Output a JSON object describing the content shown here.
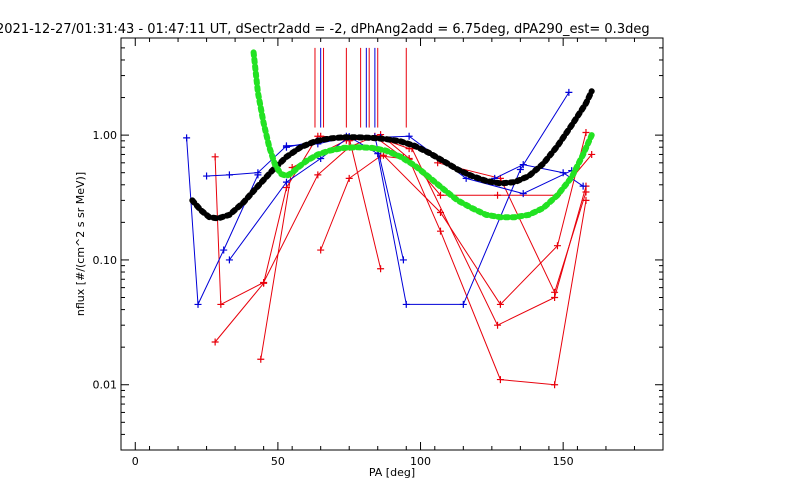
{
  "chart_data": {
    "type": "line",
    "title": "2021-12-27/01:31:43 - 01:47:11 UT, dSectr2add = -2, dPhAng2add = 6.75deg, dPA290_est=   0.3deg",
    "xlabel": "PA [deg]",
    "ylabel": "nflux [#/(cm^2 s sr MeV)]",
    "xlim": [
      -5,
      185
    ],
    "ylim": [
      0.003,
      6
    ],
    "y_scale": "log",
    "x_ticks": [
      {
        "v": 0,
        "label": "0"
      },
      {
        "v": 50,
        "label": "50"
      },
      {
        "v": 100,
        "label": "100"
      },
      {
        "v": 150,
        "label": "150"
      }
    ],
    "y_ticks": [
      {
        "v": 0.01,
        "label": "0.01"
      },
      {
        "v": 0.1,
        "label": "0.10"
      },
      {
        "v": 1,
        "label": "1.00"
      }
    ],
    "colors": {
      "red": "#e8000b",
      "blue": "#0000d8",
      "black": "#000000",
      "green": "#22e222"
    },
    "vlines": {
      "color": "#e8000b",
      "x": [
        63,
        66,
        74,
        79,
        82,
        85,
        95
      ],
      "blue_x": [
        65,
        81,
        84
      ],
      "y_from": 1.15,
      "y_to": 5.0
    },
    "series": [
      {
        "color": "red",
        "x": [
          28,
          30,
          45,
          64,
          75,
          84,
          96
        ],
        "y": [
          0.67,
          0.044,
          0.066,
          0.48,
          0.8,
          0.98,
          0.78
        ]
      },
      {
        "color": "red",
        "x": [
          28,
          45,
          53,
          64,
          75,
          84,
          94
        ],
        "y": [
          0.022,
          0.065,
          0.38,
          0.98,
          0.9,
          0.97,
          0.66
        ]
      },
      {
        "color": "red",
        "x": [
          44,
          55,
          74,
          86,
          96,
          107,
          127,
          148,
          160
        ],
        "y": [
          0.016,
          0.55,
          0.91,
          1.01,
          0.65,
          0.33,
          0.33,
          0.33,
          0.7
        ]
      },
      {
        "color": "red",
        "x": [
          65,
          75,
          86,
          96,
          107,
          128,
          147,
          158
        ],
        "y": [
          0.12,
          0.45,
          0.68,
          0.64,
          0.17,
          0.011,
          0.01,
          0.3
        ]
      },
      {
        "color": "red",
        "x": [
          65,
          75,
          86
        ],
        "y": [
          0.98,
          0.95,
          0.085
        ]
      },
      {
        "color": "red",
        "x": [
          87,
          107,
          128,
          148,
          158
        ],
        "y": [
          0.69,
          0.24,
          0.044,
          0.13,
          1.05
        ]
      },
      {
        "color": "red",
        "x": [
          97,
          127,
          147,
          158
        ],
        "y": [
          0.78,
          0.03,
          0.05,
          0.39
        ]
      },
      {
        "color": "red",
        "x": [
          106,
          128,
          147,
          158
        ],
        "y": [
          0.6,
          0.45,
          0.055,
          0.35
        ]
      },
      {
        "color": "blue",
        "x": [
          18,
          22,
          31,
          43
        ],
        "y": [
          0.95,
          0.044,
          0.12,
          0.48
        ]
      },
      {
        "color": "blue",
        "x": [
          25,
          33,
          43,
          53,
          64,
          75,
          84,
          94
        ],
        "y": [
          0.47,
          0.48,
          0.5,
          0.82,
          0.85,
          0.97,
          0.97,
          0.1
        ]
      },
      {
        "color": "blue",
        "x": [
          33,
          53,
          65,
          75,
          85,
          95,
          115,
          135,
          152
        ],
        "y": [
          0.1,
          0.42,
          0.65,
          0.97,
          0.71,
          0.044,
          0.044,
          0.53,
          2.2
        ]
      },
      {
        "color": "blue",
        "x": [
          53,
          64,
          74,
          86,
          96,
          116,
          136,
          153
        ],
        "y": [
          0.8,
          0.9,
          0.98,
          0.96,
          0.98,
          0.45,
          0.34,
          0.52
        ]
      },
      {
        "color": "blue",
        "x": [
          126,
          136,
          150,
          157
        ],
        "y": [
          0.45,
          0.58,
          0.5,
          0.39
        ]
      }
    ],
    "fits": [
      {
        "color": "black",
        "x": [
          20,
          23,
          26,
          29,
          33,
          38,
          43,
          48,
          53,
          58,
          63,
          68,
          73,
          78,
          83,
          88,
          93,
          98,
          103,
          108,
          113,
          118,
          123,
          128,
          133,
          138,
          143,
          148,
          153,
          158,
          160
        ],
        "y": [
          0.3,
          0.25,
          0.22,
          0.215,
          0.23,
          0.29,
          0.39,
          0.52,
          0.67,
          0.8,
          0.89,
          0.94,
          0.96,
          0.96,
          0.95,
          0.93,
          0.89,
          0.82,
          0.72,
          0.62,
          0.53,
          0.47,
          0.43,
          0.41,
          0.42,
          0.47,
          0.59,
          0.82,
          1.2,
          1.8,
          2.25
        ]
      },
      {
        "color": "green",
        "x": [
          41.5,
          43,
          45,
          47,
          49,
          51,
          53,
          55,
          57,
          60,
          64,
          68,
          73,
          78,
          83,
          88,
          93,
          98,
          103,
          108,
          113,
          118,
          123,
          128,
          133,
          138,
          143,
          148,
          153,
          157,
          160
        ],
        "y": [
          4.6,
          2.2,
          1.25,
          0.8,
          0.58,
          0.49,
          0.47,
          0.5,
          0.55,
          0.62,
          0.7,
          0.75,
          0.79,
          0.8,
          0.79,
          0.75,
          0.67,
          0.57,
          0.46,
          0.37,
          0.3,
          0.26,
          0.23,
          0.22,
          0.22,
          0.23,
          0.26,
          0.33,
          0.46,
          0.7,
          1.0
        ]
      }
    ]
  }
}
